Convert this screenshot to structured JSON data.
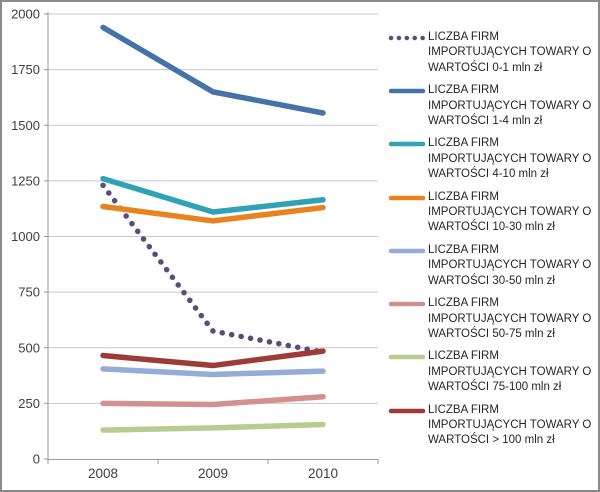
{
  "chart_data": {
    "type": "line",
    "categories": [
      "2008",
      "2009",
      "2010"
    ],
    "series": [
      {
        "name": "LICZBA FIRM IMPORTUJĄCYCH TOWARY O WARTOŚCI 0-1 mln zł",
        "label_lines": [
          "LICZBA FIRM",
          "IMPORTUJĄCYCH TOWARY O",
          "WARTOŚCI 0-1 mln zł"
        ],
        "values": [
          1230,
          575,
          480
        ],
        "color": "#5D4B79",
        "line_style": "dotted"
      },
      {
        "name": "LICZBA FIRM IMPORTUJĄCYCH TOWARY O WARTOŚCI 1-4 mln zł",
        "label_lines": [
          "LICZBA FIRM",
          "IMPORTUJĄCYCH TOWARY O",
          "WARTOŚCI 1-4 mln zł"
        ],
        "values": [
          1940,
          1650,
          1555
        ],
        "color": "#4573A7",
        "line_style": "solid"
      },
      {
        "name": "LICZBA FIRM IMPORTUJĄCYCH TOWARY O WARTOŚCI 4-10 mln zł",
        "label_lines": [
          "LICZBA FIRM",
          "IMPORTUJĄCYCH TOWARY O",
          "WARTOŚCI 4-10 mln zł"
        ],
        "values": [
          1260,
          1110,
          1165
        ],
        "color": "#2FA2B4",
        "line_style": "solid"
      },
      {
        "name": "LICZBA FIRM IMPORTUJĄCYCH TOWARY O WARTOŚCI 10-30 mln zł",
        "label_lines": [
          "LICZBA FIRM",
          "IMPORTUJĄCYCH TOWARY O",
          "WARTOŚCI 10-30 mln zł"
        ],
        "values": [
          1135,
          1070,
          1130
        ],
        "color": "#E8831D",
        "line_style": "solid"
      },
      {
        "name": "LICZBA FIRM IMPORTUJĄCYCH TOWARY O WARTOŚCI 30-50 mln zł",
        "label_lines": [
          "LICZBA FIRM",
          "IMPORTUJĄCYCH TOWARY O",
          "WARTOŚCI 30-50 mln zł"
        ],
        "values": [
          405,
          380,
          395
        ],
        "color": "#95ACD6",
        "line_style": "solid"
      },
      {
        "name": "LICZBA FIRM IMPORTUJĄCYCH TOWARY O WARTOŚCI 50-75 mln zł",
        "label_lines": [
          "LICZBA FIRM",
          "IMPORTUJĄCYCH TOWARY O",
          "WARTOŚCI 50-75 mln zł"
        ],
        "values": [
          250,
          245,
          280
        ],
        "color": "#D2918F",
        "line_style": "solid"
      },
      {
        "name": "LICZBA FIRM IMPORTUJĄCYCH TOWARY O WARTOŚCI 75-100 mln zł",
        "label_lines": [
          "LICZBA FIRM",
          "IMPORTUJĄCYCH TOWARY O",
          "WARTOŚCI 75-100 mln zł"
        ],
        "values": [
          130,
          140,
          155
        ],
        "color": "#B7CC90",
        "line_style": "solid"
      },
      {
        "name": "LICZBA FIRM IMPORTUJĄCYCH TOWARY O WARTOŚCI > 100 mln zł",
        "label_lines": [
          "LICZBA FIRM",
          "IMPORTUJĄCYCH TOWARY O",
          "WARTOŚCI > 100 mln zł"
        ],
        "values": [
          465,
          420,
          485
        ],
        "color": "#9E3B36",
        "line_style": "solid"
      }
    ],
    "title": "",
    "xlabel": "",
    "ylabel": "",
    "ylim": [
      0,
      2000
    ],
    "ytick_step": 250,
    "yticks": [
      "0",
      "250",
      "500",
      "750",
      "1000",
      "1250",
      "1500",
      "1750",
      "2000"
    ],
    "grid": true,
    "legend_position": "right"
  },
  "colors": {
    "background": "#FFFFFF",
    "border": "#8A8A8A",
    "gridline": "#C9C9C9",
    "axis": "#999999",
    "tick_text": "#3F3F3F",
    "legend_text": "#262626"
  }
}
